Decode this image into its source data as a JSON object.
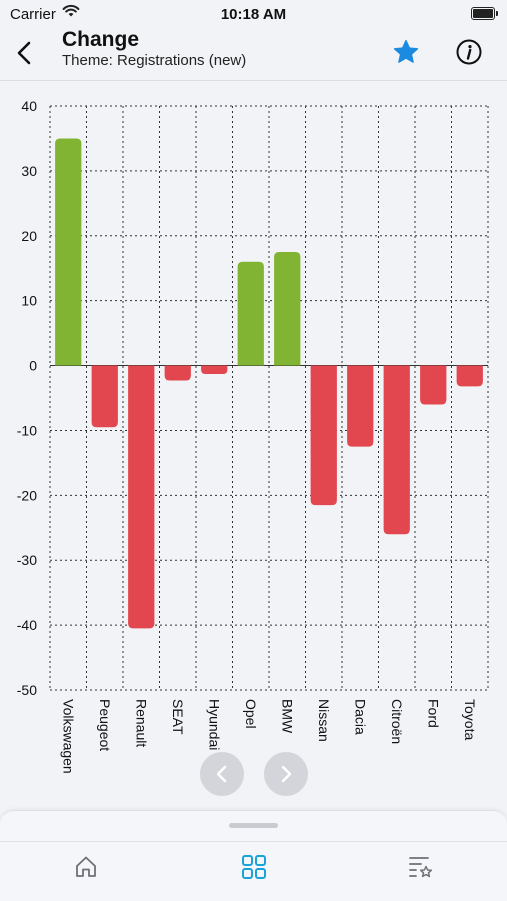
{
  "status": {
    "carrier": "Carrier",
    "time": "10:18 AM"
  },
  "header": {
    "title": "Change",
    "subtitle": "Theme: Registrations (new)"
  },
  "colors": {
    "positive": "#80b432",
    "negative": "#e2474f",
    "accent": "#1a8be0",
    "tab_active": "#1aa3d6",
    "tab_inactive": "#6e7077"
  },
  "icons": {
    "back": "chevron-left-icon",
    "favorite": "star-icon",
    "info": "info-icon",
    "prev": "chevron-left-icon",
    "next": "chevron-right-icon",
    "home": "home-icon",
    "grid": "grid-icon",
    "favorites_list": "starred-list-icon"
  },
  "chart_data": {
    "type": "bar",
    "title": "",
    "xlabel": "",
    "ylabel": "",
    "categories": [
      "Volkswagen",
      "Peugeot",
      "Renault",
      "SEAT",
      "Hyundai",
      "Opel",
      "BMW",
      "Nissan",
      "Dacia",
      "Citroën",
      "Ford",
      "Toyota"
    ],
    "values": [
      35,
      -9.5,
      -40.5,
      -2.3,
      -1.3,
      16,
      17.5,
      -21.5,
      -12.5,
      -26,
      -6,
      -3.2
    ],
    "ylim": [
      -50,
      40
    ],
    "yticks": [
      "40",
      "30",
      "20",
      "10",
      "0",
      "-10",
      "-20",
      "-30",
      "-40",
      "-50"
    ],
    "grid": true,
    "legend": "none"
  }
}
